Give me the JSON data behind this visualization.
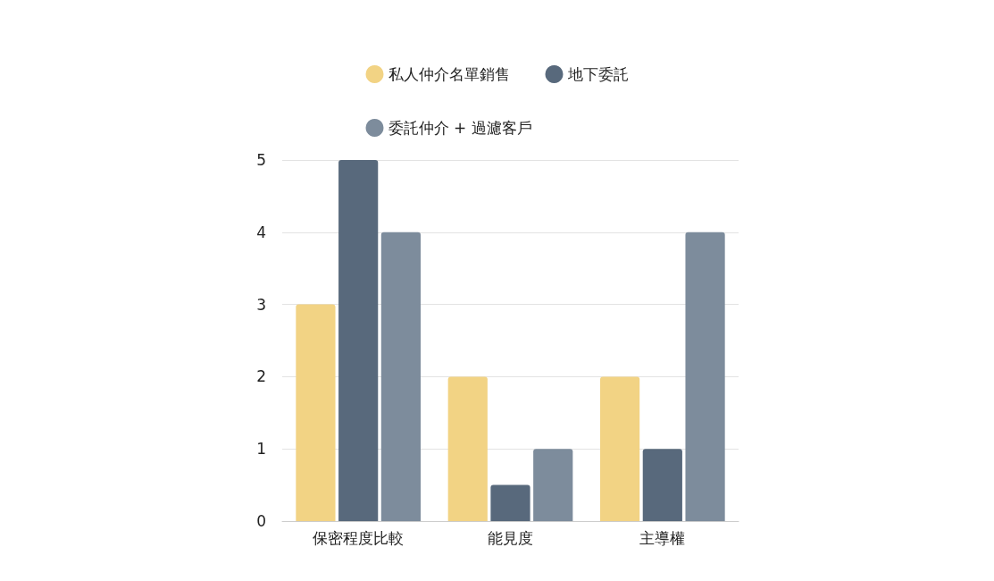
{
  "chart_data": {
    "type": "bar",
    "categories": [
      "保密程度比較",
      "能見度",
      "主導權"
    ],
    "series": [
      {
        "name": "私人仲介名單銷售",
        "color": "#f2d384",
        "values": [
          3,
          2,
          2
        ]
      },
      {
        "name": "地下委託",
        "color": "#58697c",
        "values": [
          5,
          0.5,
          1
        ]
      },
      {
        "name": "委託仲介 + 過濾客戶",
        "color": "#7d8c9c",
        "values": [
          4,
          1,
          4
        ]
      }
    ],
    "ylim": [
      0,
      5
    ],
    "yticks": [
      0,
      1,
      2,
      3,
      4,
      5
    ],
    "grid": "y",
    "legend": "top"
  }
}
